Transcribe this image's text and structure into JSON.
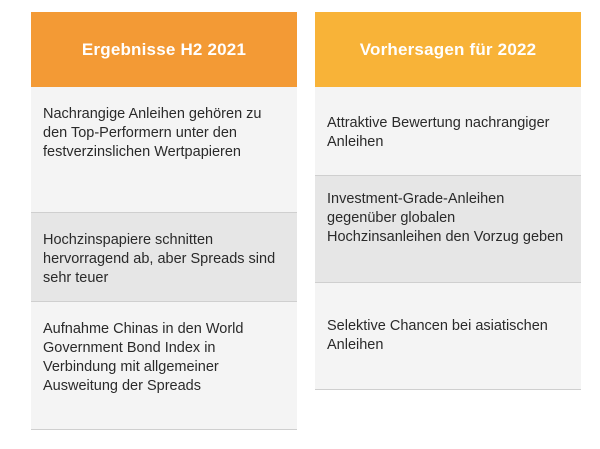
{
  "left_column": {
    "title": "Ergebnisse H2 2021",
    "items": [
      "Nachrangige Anleihen gehören zu den Top-Performern unter den festverzinslichen Wertpapieren",
      "Hochzinspapiere schnitten hervorragend ab, aber Spreads sind sehr teuer",
      "Aufnahme Chinas in den World Government Bond Index in Verbindung mit allgemeiner Ausweitung der Spreads"
    ]
  },
  "right_column": {
    "title": "Vorhersagen für 2022",
    "items": [
      "Attraktive Bewertung nachrangiger Anleihen",
      "Investment-Grade-Anleihen gegenüber globalen Hochzinsanleihen den Vorzug geben",
      "Selektive Chancen bei asiatischen Anleihen"
    ]
  },
  "colors": {
    "left_header": "#f39a35",
    "right_header": "#f8b338",
    "cell_light": "#f4f4f4",
    "cell_dark": "#e6e6e6"
  }
}
